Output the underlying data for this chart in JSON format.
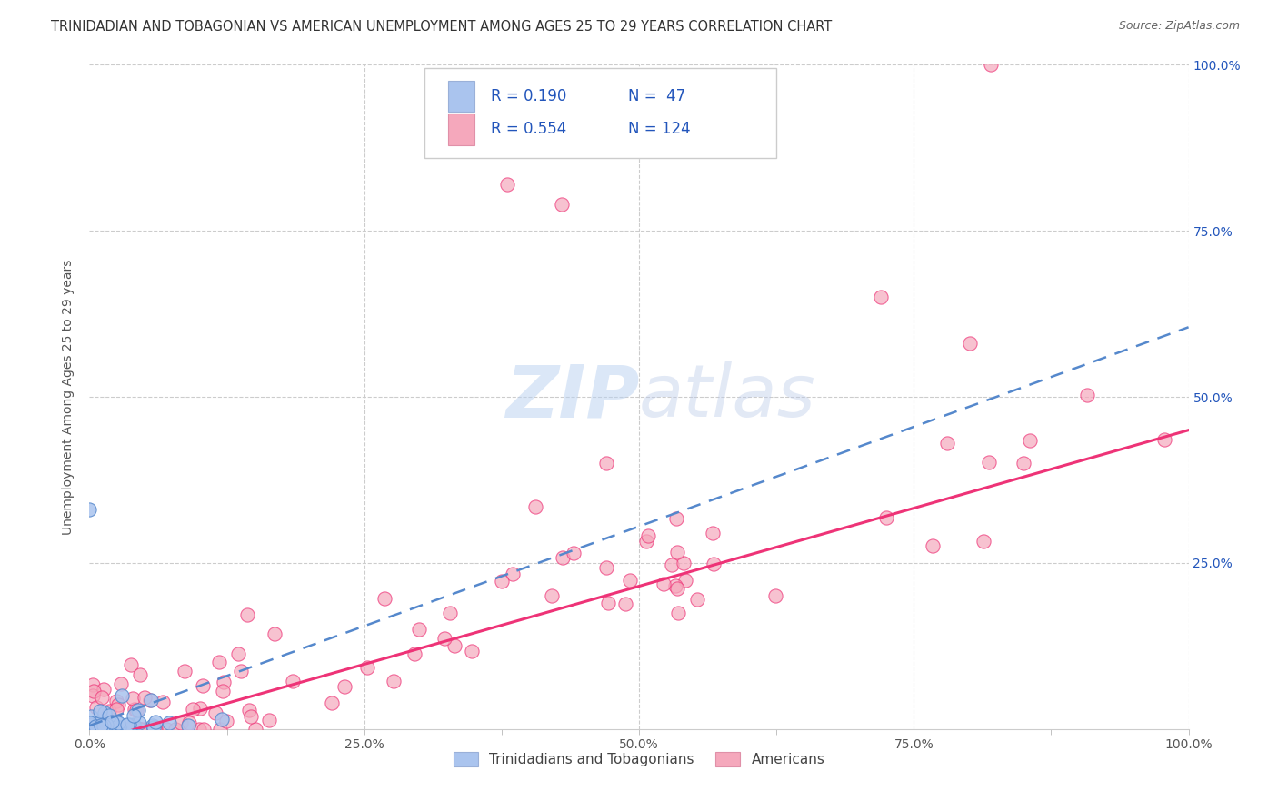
{
  "title": "TRINIDADIAN AND TOBAGONIAN VS AMERICAN UNEMPLOYMENT AMONG AGES 25 TO 29 YEARS CORRELATION CHART",
  "source": "Source: ZipAtlas.com",
  "ylabel": "Unemployment Among Ages 25 to 29 years",
  "xmin": 0.0,
  "xmax": 1.0,
  "ymin": 0.0,
  "ymax": 1.0,
  "x_tick_labels": [
    "0.0%",
    "",
    "25.0%",
    "",
    "50.0%",
    "",
    "75.0%",
    "",
    "100.0%"
  ],
  "x_tick_vals": [
    0.0,
    0.125,
    0.25,
    0.375,
    0.5,
    0.625,
    0.75,
    0.875,
    1.0
  ],
  "y_tick_labels": [
    "25.0%",
    "50.0%",
    "75.0%",
    "100.0%"
  ],
  "y_tick_vals": [
    0.25,
    0.5,
    0.75,
    1.0
  ],
  "grid_color": "#cccccc",
  "background_color": "#ffffff",
  "series1_color": "#aac4ee",
  "series2_color": "#f5a8bc",
  "series1_line_color": "#5588cc",
  "series2_line_color": "#ee3377",
  "watermark_color": "#c8daf5",
  "legend_label1": "Trinidadians and Tobagonians",
  "legend_label2": "Americans",
  "R1": "0.190",
  "N1": "47",
  "R2": "0.554",
  "N2": "124",
  "stat_color": "#2255bb",
  "title_color": "#333333",
  "source_color": "#666666",
  "ylabel_color": "#555555",
  "tick_color": "#555555",
  "line1_slope": 0.6,
  "line1_intercept": 0.005,
  "line2_slope": 0.47,
  "line2_intercept": -0.02
}
